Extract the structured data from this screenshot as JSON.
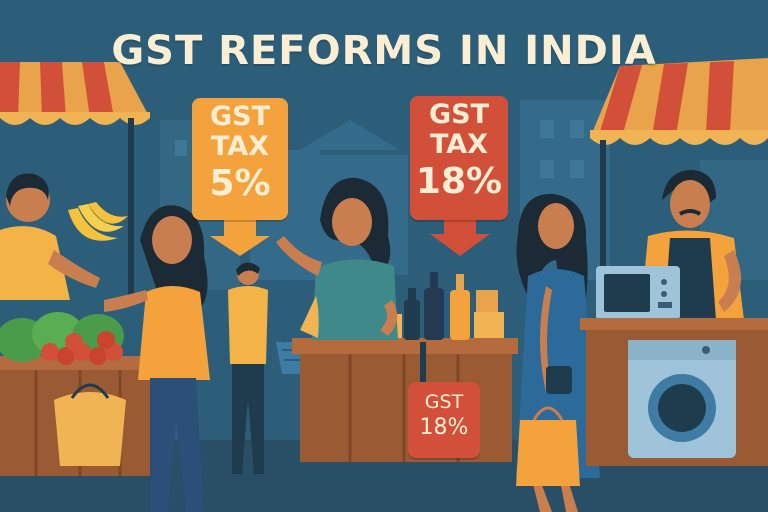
{
  "title": "GST REFORMS IN INDIA",
  "signs": {
    "left": {
      "line1": "GST",
      "line2": "TAX",
      "rate": "5%"
    },
    "right": {
      "line1": "GST",
      "line2": "TAX",
      "rate": "18%"
    },
    "counter": {
      "line1": "GST",
      "line2": "18%"
    }
  },
  "colors": {
    "background": "#2c5e7a",
    "title": "#fbeed3",
    "orange_sign": "#f4a23c",
    "red_sign": "#d2503a"
  }
}
